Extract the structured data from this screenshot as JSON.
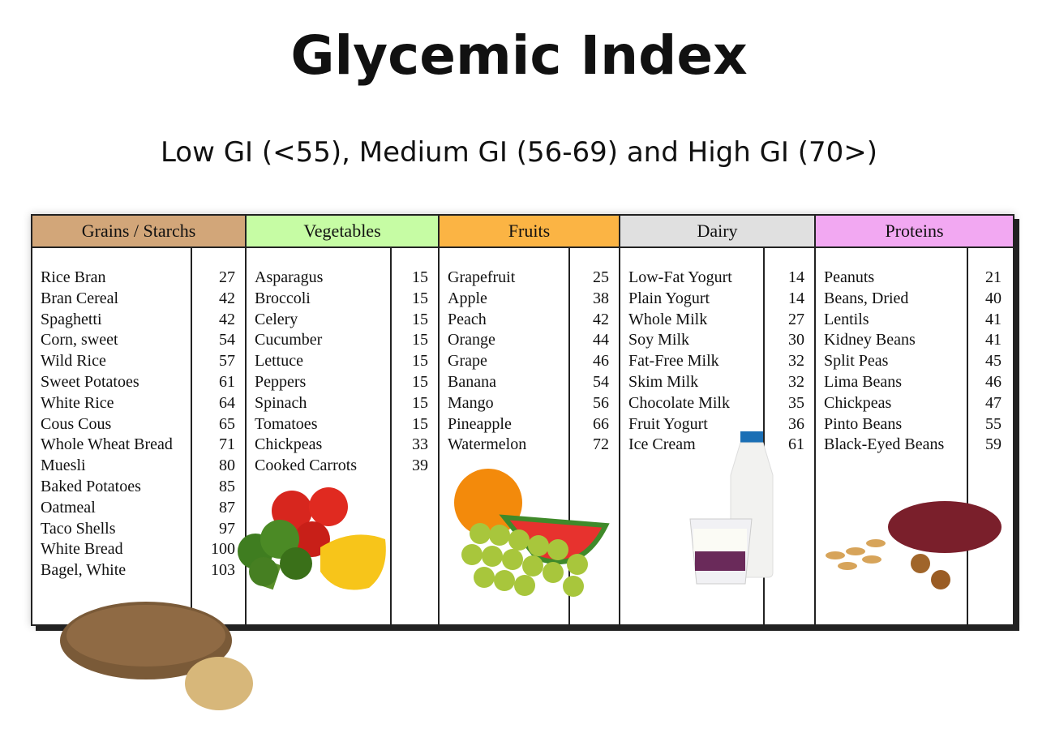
{
  "title": "Glycemic Index",
  "subtitle": "Low GI (<55), Medium GI (56-69) and High GI (70>)",
  "categories": [
    {
      "name": "Grains / Starchs",
      "color": "#d2a679",
      "items": [
        {
          "food": "Rice Bran",
          "gi": "27"
        },
        {
          "food": "Bran Cereal",
          "gi": "42"
        },
        {
          "food": "Spaghetti",
          "gi": "42"
        },
        {
          "food": "Corn, sweet",
          "gi": "54"
        },
        {
          "food": "Wild Rice",
          "gi": "57"
        },
        {
          "food": "Sweet Potatoes",
          "gi": "61"
        },
        {
          "food": "White Rice",
          "gi": "64"
        },
        {
          "food": "Cous Cous",
          "gi": "65"
        },
        {
          "food": "Whole Wheat Bread",
          "gi": "71"
        },
        {
          "food": "Muesli",
          "gi": "80"
        },
        {
          "food": "Baked Potatoes",
          "gi": "85"
        },
        {
          "food": "Oatmeal",
          "gi": "87"
        },
        {
          "food": "Taco Shells",
          "gi": "97"
        },
        {
          "food": "White Bread",
          "gi": "100"
        },
        {
          "food": "Bagel, White",
          "gi": "103"
        }
      ]
    },
    {
      "name": "Vegetables",
      "color": "#c6fca4",
      "items": [
        {
          "food": "Asparagus",
          "gi": "15"
        },
        {
          "food": "Broccoli",
          "gi": "15"
        },
        {
          "food": "Celery",
          "gi": "15"
        },
        {
          "food": "Cucumber",
          "gi": "15"
        },
        {
          "food": "Lettuce",
          "gi": "15"
        },
        {
          "food": "Peppers",
          "gi": "15"
        },
        {
          "food": "Spinach",
          "gi": "15"
        },
        {
          "food": "Tomatoes",
          "gi": "15"
        },
        {
          "food": "Chickpeas",
          "gi": "33"
        },
        {
          "food": "Cooked Carrots",
          "gi": "39"
        }
      ]
    },
    {
      "name": "Fruits",
      "color": "#fbb444",
      "items": [
        {
          "food": "Grapefruit",
          "gi": "25"
        },
        {
          "food": "Apple",
          "gi": "38"
        },
        {
          "food": "Peach",
          "gi": "42"
        },
        {
          "food": "Orange",
          "gi": "44"
        },
        {
          "food": "Grape",
          "gi": "46"
        },
        {
          "food": "Banana",
          "gi": "54"
        },
        {
          "food": "Mango",
          "gi": "56"
        },
        {
          "food": "Pineapple",
          "gi": "66"
        },
        {
          "food": "Watermelon",
          "gi": "72"
        }
      ]
    },
    {
      "name": "Dairy",
      "color": "#e0e0e0",
      "items": [
        {
          "food": "Low-Fat Yogurt",
          "gi": "14"
        },
        {
          "food": "Plain Yogurt",
          "gi": "14"
        },
        {
          "food": "Whole Milk",
          "gi": "27"
        },
        {
          "food": "Soy Milk",
          "gi": "30"
        },
        {
          "food": "Fat-Free Milk",
          "gi": "32"
        },
        {
          "food": "Skim Milk",
          "gi": "32"
        },
        {
          "food": "Chocolate Milk",
          "gi": "35"
        },
        {
          "food": "Fruit Yogurt",
          "gi": "36"
        },
        {
          "food": "Ice Cream",
          "gi": "61"
        }
      ]
    },
    {
      "name": "Proteins",
      "color": "#f2a8f2",
      "items": [
        {
          "food": "Peanuts",
          "gi": "21"
        },
        {
          "food": "Beans, Dried",
          "gi": "40"
        },
        {
          "food": "Lentils",
          "gi": "41"
        },
        {
          "food": "Kidney Beans",
          "gi": "41"
        },
        {
          "food": "Split Peas",
          "gi": "45"
        },
        {
          "food": "Lima Beans",
          "gi": "46"
        },
        {
          "food": "Chickpeas",
          "gi": "47"
        },
        {
          "food": "Pinto Beans",
          "gi": "55"
        },
        {
          "food": "Black-Eyed Beans",
          "gi": "59"
        }
      ]
    }
  ]
}
